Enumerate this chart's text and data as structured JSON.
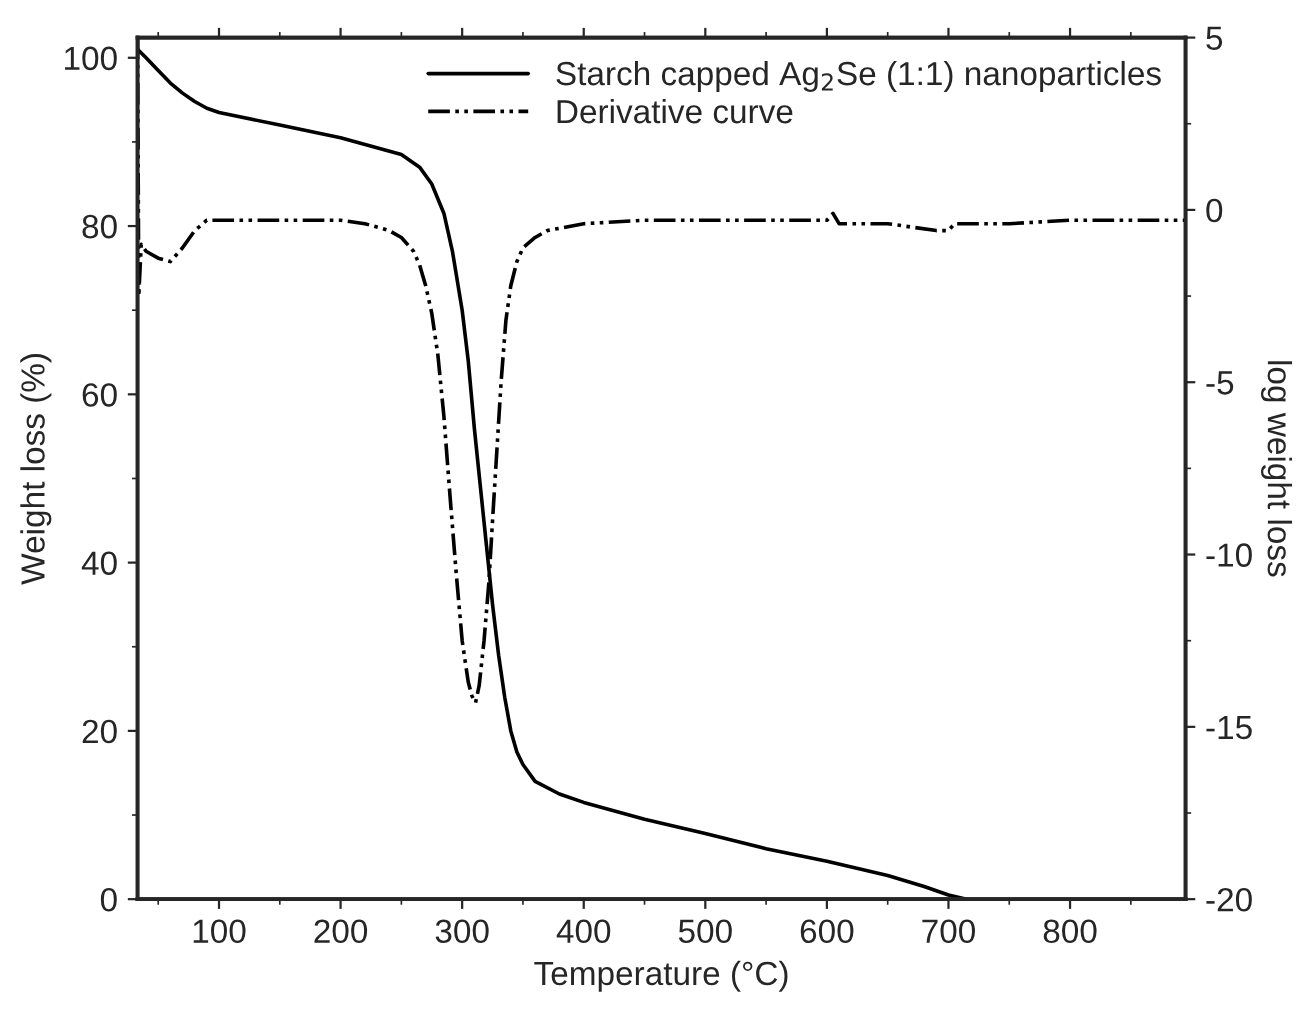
{
  "chart_data": {
    "type": "line",
    "xlabel": "Temperature (°C)",
    "ylabel": "Weight loss (%)",
    "y2label": "log weight loss",
    "xlim": [
      33,
      895
    ],
    "xticks": [
      100,
      200,
      300,
      400,
      500,
      600,
      700,
      800
    ],
    "ylim": [
      0,
      102.4
    ],
    "yticks": [
      0,
      20,
      40,
      60,
      80,
      100
    ],
    "y2lim": [
      -20,
      5
    ],
    "y2ticks": [
      -20,
      -15,
      -10,
      -5,
      0,
      5
    ],
    "legend": "top right",
    "grid": false,
    "series": [
      {
        "name": "Starch capped Ag$_{2}$Se (1:1) nanoparticles",
        "color": "#000000",
        "line_style": "solid",
        "x": [
          33,
          40,
          50,
          60,
          70,
          80,
          90,
          100,
          150,
          200,
          250,
          265,
          275,
          285,
          292,
          300,
          305,
          310,
          315,
          320,
          325,
          330,
          335,
          340,
          345,
          350,
          360,
          380,
          400,
          450,
          500,
          550,
          600,
          650,
          680,
          700,
          715
        ],
        "values": [
          101,
          100,
          98.5,
          97,
          95.8,
          94.8,
          94,
          93.5,
          92,
          90.5,
          88.5,
          87,
          85,
          81.5,
          77,
          70,
          64,
          56,
          49,
          42,
          35,
          29,
          24,
          20,
          17.5,
          16,
          14,
          12.5,
          11.5,
          9.5,
          7.8,
          6,
          4.5,
          2.8,
          1.5,
          0.5,
          0
        ]
      },
      {
        "name": "Derivative curve",
        "color": "#000000",
        "line_style": "dashed",
        "axis": "y2",
        "x": [
          33,
          34,
          36,
          40,
          50,
          60,
          70,
          80,
          90,
          100,
          150,
          200,
          220,
          240,
          250,
          260,
          265,
          270,
          275,
          280,
          285,
          290,
          295,
          300,
          305,
          308,
          311,
          314,
          318,
          322,
          325,
          328,
          332,
          336,
          340,
          345,
          350,
          360,
          370,
          400,
          450,
          500,
          550,
          600,
          605,
          610,
          650,
          690,
          700,
          705,
          750,
          800,
          850,
          895
        ],
        "values": [
          5,
          -2.5,
          -1.0,
          -1.2,
          -1.4,
          -1.5,
          -1.1,
          -0.6,
          -0.3,
          -0.3,
          -0.3,
          -0.3,
          -0.4,
          -0.6,
          -0.8,
          -1.2,
          -1.6,
          -2.2,
          -3,
          -4.2,
          -6,
          -8.3,
          -10.5,
          -12.5,
          -13.7,
          -14.1,
          -14.3,
          -13.8,
          -12.5,
          -10.8,
          -9.0,
          -7.3,
          -5.0,
          -3.2,
          -2.2,
          -1.5,
          -1.1,
          -0.8,
          -0.6,
          -0.4,
          -0.3,
          -0.3,
          -0.3,
          -0.3,
          -0.1,
          -0.4,
          -0.4,
          -0.6,
          -0.6,
          -0.4,
          -0.4,
          -0.3,
          -0.3,
          -0.3
        ]
      }
    ]
  }
}
